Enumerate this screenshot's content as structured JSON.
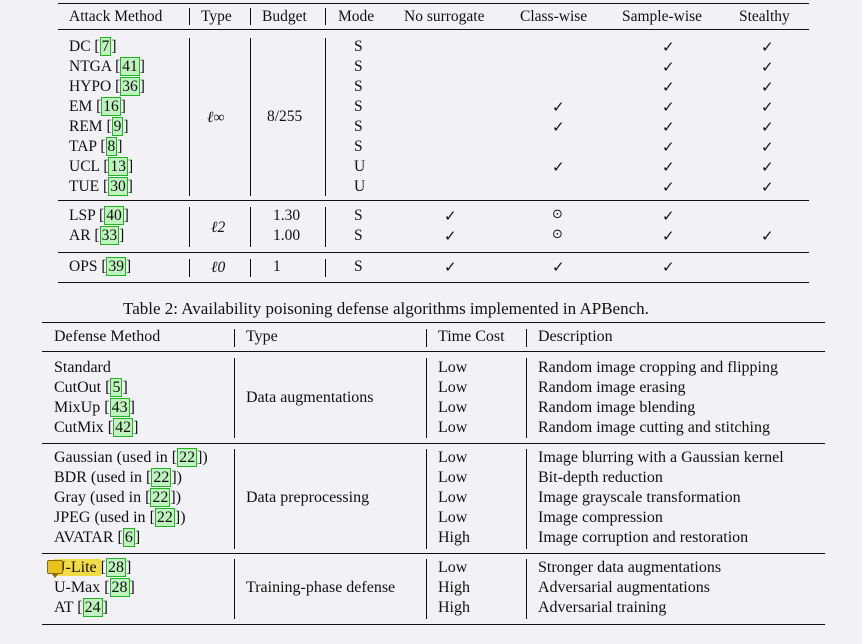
{
  "table1": {
    "headers": [
      "Attack Method",
      "Type",
      "Budget",
      "Mode",
      "No surrogate",
      "Class-wise",
      "Sample-wise",
      "Stealthy"
    ],
    "groups": [
      {
        "type": "ℓ∞",
        "budget": "8/255",
        "rows": [
          {
            "name": "DC",
            "ref": "7",
            "mode": "S",
            "no_surrogate": "",
            "class_wise": "",
            "sample_wise": "✓",
            "stealthy": "✓"
          },
          {
            "name": "NTGA",
            "ref": "41",
            "mode": "S",
            "no_surrogate": "",
            "class_wise": "",
            "sample_wise": "✓",
            "stealthy": "✓"
          },
          {
            "name": "HYPO",
            "ref": "36",
            "mode": "S",
            "no_surrogate": "",
            "class_wise": "",
            "sample_wise": "✓",
            "stealthy": "✓"
          },
          {
            "name": "EM",
            "ref": "16",
            "mode": "S",
            "no_surrogate": "",
            "class_wise": "✓",
            "sample_wise": "✓",
            "stealthy": "✓"
          },
          {
            "name": "REM",
            "ref": "9",
            "mode": "S",
            "no_surrogate": "",
            "class_wise": "✓",
            "sample_wise": "✓",
            "stealthy": "✓"
          },
          {
            "name": "TAP",
            "ref": "8",
            "mode": "S",
            "no_surrogate": "",
            "class_wise": "",
            "sample_wise": "✓",
            "stealthy": "✓"
          },
          {
            "name": "UCL",
            "ref": "13",
            "mode": "U",
            "no_surrogate": "",
            "class_wise": "✓",
            "sample_wise": "✓",
            "stealthy": "✓"
          },
          {
            "name": "TUE",
            "ref": "30",
            "mode": "U",
            "no_surrogate": "",
            "class_wise": "",
            "sample_wise": "✓",
            "stealthy": "✓"
          }
        ]
      },
      {
        "type": "ℓ2",
        "rows": [
          {
            "name": "LSP",
            "ref": "40",
            "budget": "1.30",
            "mode": "S",
            "no_surrogate": "✓",
            "class_wise": "⊙",
            "sample_wise": "✓",
            "stealthy": ""
          },
          {
            "name": "AR",
            "ref": "33",
            "budget": "1.00",
            "mode": "S",
            "no_surrogate": "✓",
            "class_wise": "⊙",
            "sample_wise": "✓",
            "stealthy": "✓"
          }
        ]
      },
      {
        "type": "ℓ0",
        "rows": [
          {
            "name": "OPS",
            "ref": "39",
            "budget": "1",
            "mode": "S",
            "no_surrogate": "✓",
            "class_wise": "✓",
            "sample_wise": "✓",
            "stealthy": ""
          }
        ]
      }
    ]
  },
  "caption2": "Table 2: Availability poisoning defense algorithms implemented in APBench.",
  "table2": {
    "headers": [
      "Defense Method",
      "Type",
      "Time Cost",
      "Description"
    ],
    "groups": [
      {
        "type": "Data augmentations",
        "rows": [
          {
            "pre": "Standard",
            "ref": "",
            "post": "",
            "cost": "Low",
            "desc": "Random image cropping and flipping"
          },
          {
            "pre": "CutOut ",
            "ref": "5",
            "post": "",
            "cost": "Low",
            "desc": "Random image erasing"
          },
          {
            "pre": "MixUp ",
            "ref": "43",
            "post": "",
            "cost": "Low",
            "desc": "Random image blending"
          },
          {
            "pre": "CutMix ",
            "ref": "42",
            "post": "",
            "cost": "Low",
            "desc": "Random image cutting and stitching"
          }
        ]
      },
      {
        "type": "Data preprocessing",
        "rows": [
          {
            "pre": "Gaussian (used in ",
            "ref": "22",
            "post": ")",
            "cost": "Low",
            "desc": "Image blurring with a Gaussian kernel"
          },
          {
            "pre": "BDR (used in ",
            "ref": "22",
            "post": ")",
            "cost": "Low",
            "desc": "Bit-depth reduction"
          },
          {
            "pre": "Gray (used in ",
            "ref": "22",
            "post": ")",
            "cost": "Low",
            "desc": "Image grayscale transformation"
          },
          {
            "pre": "JPEG (used in ",
            "ref": "22",
            "post": ")",
            "cost": "Low",
            "desc": "Image compression"
          },
          {
            "pre": "AVATAR ",
            "ref": "6",
            "post": "",
            "cost": "High",
            "desc": "Image corruption and restoration"
          }
        ]
      },
      {
        "type": "Training-phase defense",
        "rows": [
          {
            "pre": "U-Lite ",
            "ref": "28",
            "post": "",
            "cost": "Low",
            "desc": "Stronger data augmentations",
            "highlight": true
          },
          {
            "pre": "U-Max ",
            "ref": "28",
            "post": "",
            "cost": "High",
            "desc": "Adversarial augmentations"
          },
          {
            "pre": "AT ",
            "ref": "24",
            "post": "",
            "cost": "High",
            "desc": "Adversarial training"
          }
        ]
      }
    ]
  },
  "colors": {
    "background": "#f2f1f6",
    "citation_fill": "#bff2bf",
    "citation_border": "#1db51d",
    "highlight": "#f2dc45"
  }
}
